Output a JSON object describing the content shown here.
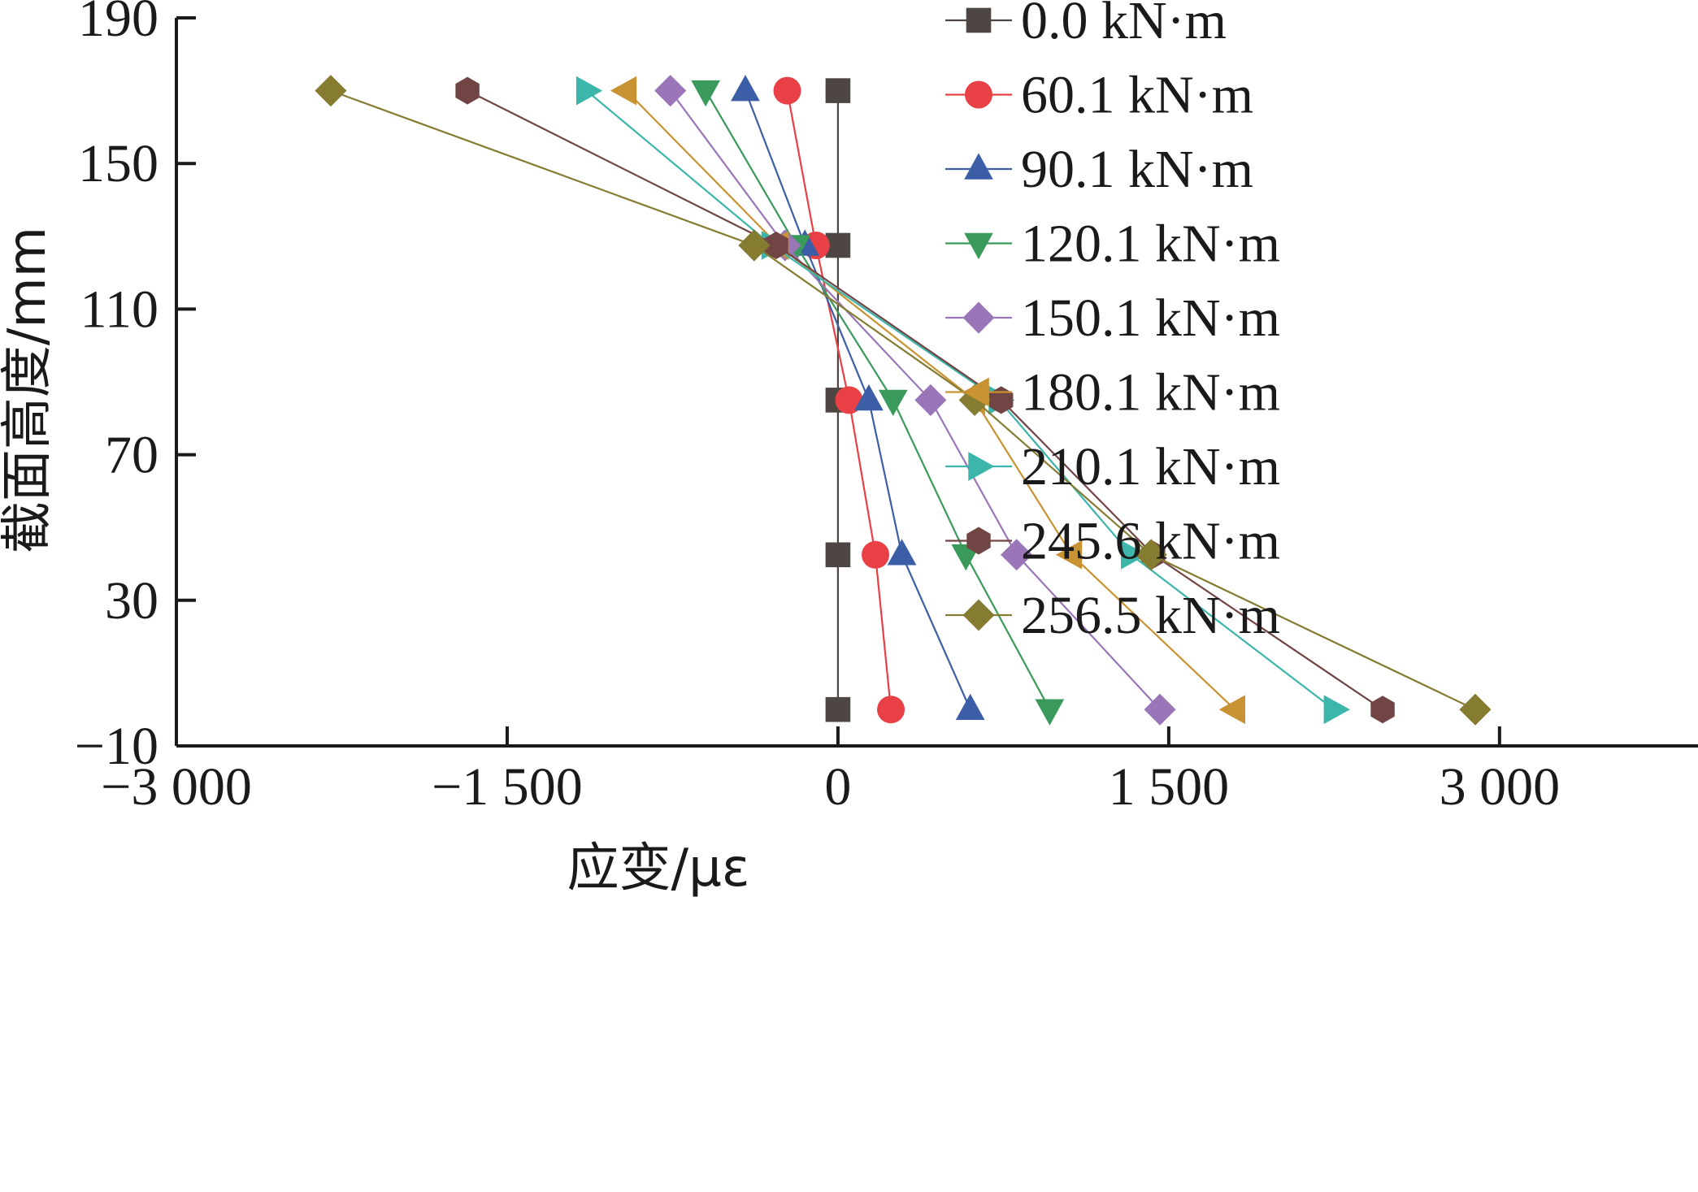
{
  "chart_data": {
    "type": "line",
    "title": "",
    "xlabel": "应变/με",
    "ylabel": "截面高度/mm",
    "xlim": [
      -3000,
      3900
    ],
    "ylim": [
      -10,
      190
    ],
    "x_ticks": [
      -3000,
      -1500,
      0,
      1500,
      3000
    ],
    "x_tick_labels": [
      "−3 000",
      "−1 500",
      "0",
      "1 500",
      "3 000"
    ],
    "y_ticks": [
      -10,
      30,
      70,
      110,
      150,
      190
    ],
    "y_tick_labels": [
      "−10",
      "30",
      "70",
      "110",
      "150",
      "190"
    ],
    "heights": [
      170,
      127.5,
      85,
      42.5,
      0
    ],
    "grid": false,
    "legend_position": "top-right",
    "series": [
      {
        "name": "0.0 kN·m",
        "color": "#4d4643",
        "marker": "square",
        "strain": [
          0,
          0,
          0,
          0,
          0
        ]
      },
      {
        "name": "60.1 kN·m",
        "color": "#e84045",
        "marker": "circle",
        "strain": [
          -230,
          -100,
          50,
          170,
          240
        ]
      },
      {
        "name": "90.1 kN·m",
        "color": "#3b5ea6",
        "marker": "triangle-up",
        "strain": [
          -420,
          -150,
          140,
          290,
          600
        ]
      },
      {
        "name": "120.1 kN·m",
        "color": "#3a9a5b",
        "marker": "triangle-down",
        "strain": [
          -600,
          -190,
          250,
          580,
          960
        ]
      },
      {
        "name": "150.1 kN·m",
        "color": "#9a76b8",
        "marker": "diamond",
        "strain": [
          -760,
          -240,
          420,
          810,
          1460
        ]
      },
      {
        "name": "180.1 kN·m",
        "color": "#c99232",
        "marker": "triangle-left",
        "strain": [
          -960,
          -270,
          620,
          1060,
          1800
        ]
      },
      {
        "name": "210.1 kN·m",
        "color": "#3cb6ab",
        "marker": "triangle-right",
        "strain": [
          -1140,
          -300,
          730,
          1330,
          2250
        ]
      },
      {
        "name": "245.6 kN·m",
        "color": "#704543",
        "marker": "hexagon",
        "strain": [
          -1680,
          -280,
          740,
          1430,
          2470
        ]
      },
      {
        "name": "256.5 kN·m",
        "color": "#857c32",
        "marker": "diamond",
        "strain": [
          -2300,
          -380,
          620,
          1420,
          2890
        ]
      }
    ]
  }
}
